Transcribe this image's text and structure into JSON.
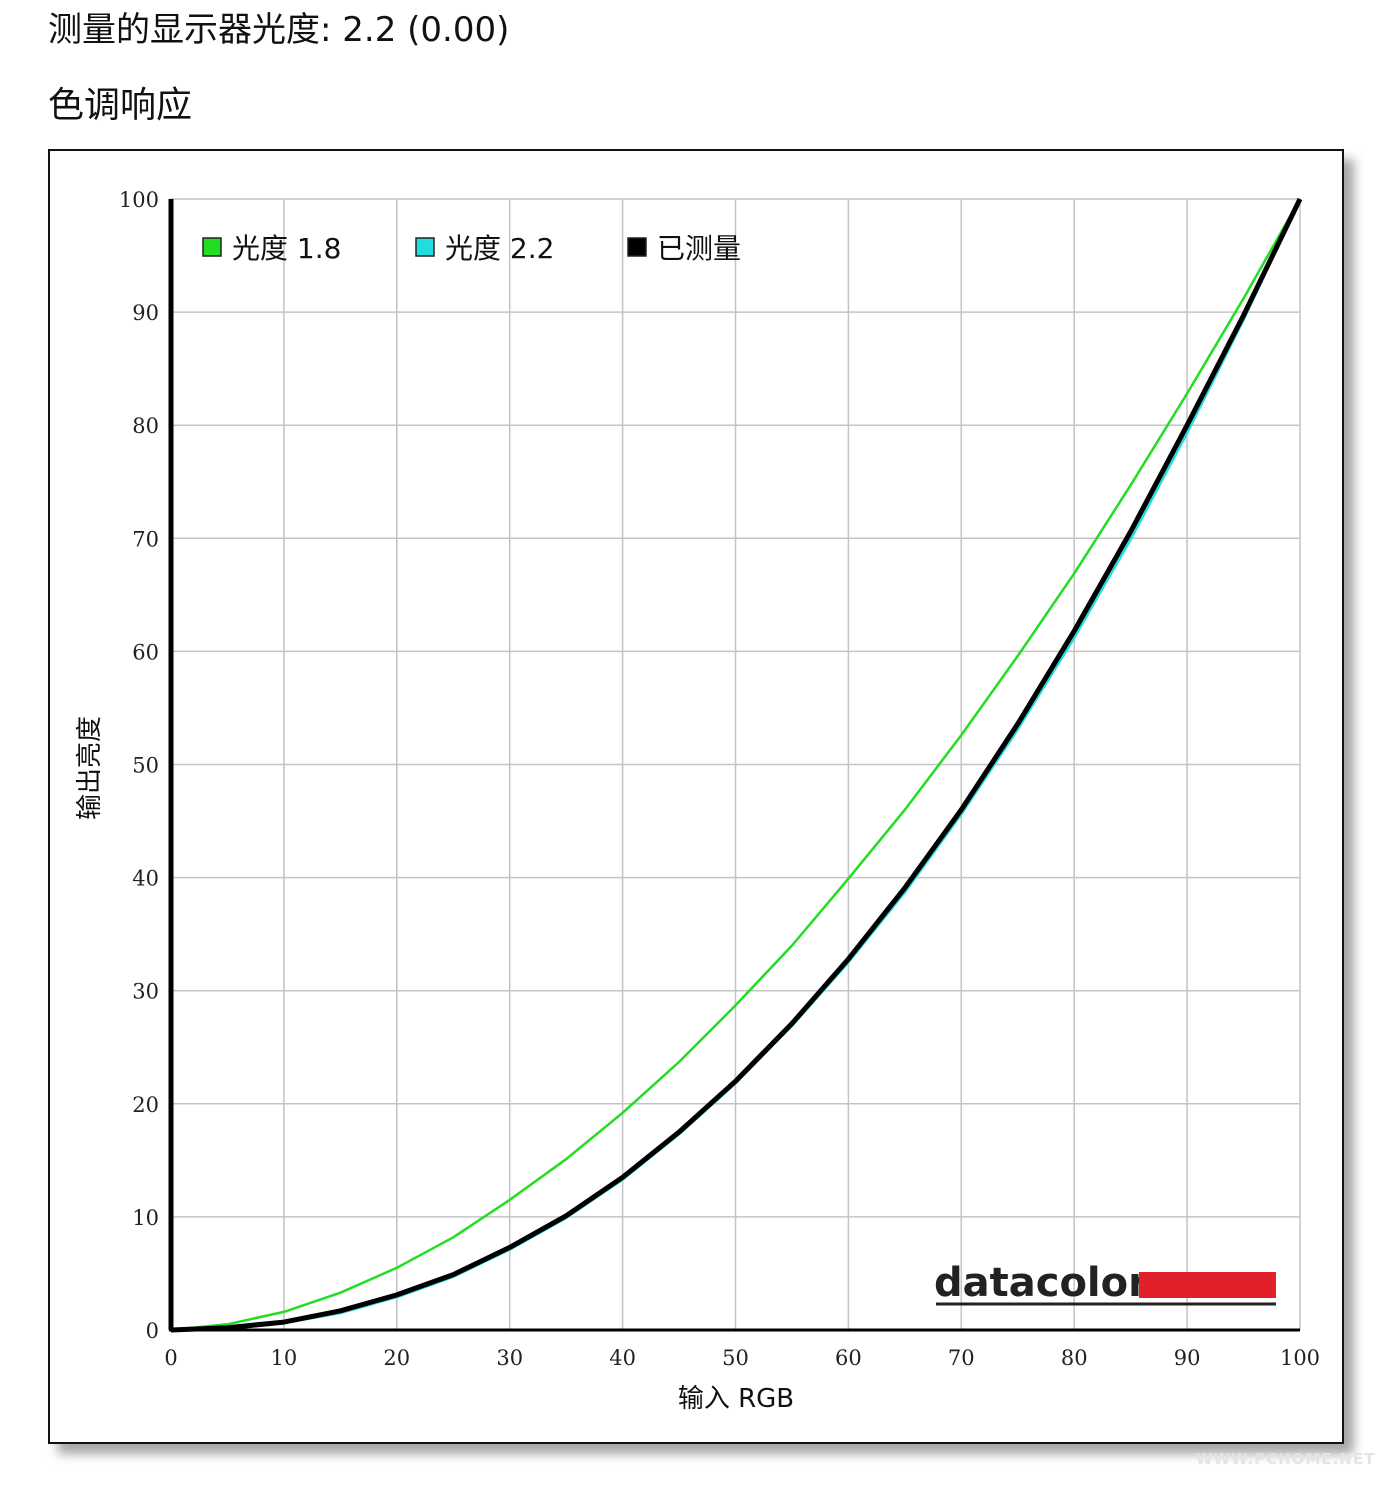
{
  "page": {
    "measured_gamma": "测量的显示器光度:  2.2 (0.00)",
    "section_title": "色调响应",
    "watermark": "WWW.PCHOME.NET"
  },
  "chart_data": {
    "type": "line",
    "title": "",
    "xlabel": "输入 RGB",
    "ylabel": "输出亮度",
    "xlim": [
      0,
      100
    ],
    "ylim": [
      0,
      100
    ],
    "xticks": [
      0,
      10,
      20,
      30,
      40,
      50,
      60,
      70,
      80,
      90,
      100
    ],
    "yticks": [
      0,
      10,
      20,
      30,
      40,
      50,
      60,
      70,
      80,
      90,
      100
    ],
    "grid": true,
    "legend_position": "top-left",
    "x": [
      0,
      5,
      10,
      15,
      20,
      25,
      30,
      35,
      40,
      45,
      50,
      55,
      60,
      65,
      70,
      75,
      80,
      85,
      90,
      95,
      100
    ],
    "series": [
      {
        "name": "光度 1.8",
        "color": "#22dd22",
        "values": [
          0,
          0.5,
          1.6,
          3.3,
          5.5,
          8.2,
          11.5,
          15.1,
          19.2,
          23.7,
          28.7,
          34.0,
          39.9,
          46.0,
          52.6,
          59.6,
          66.9,
          74.7,
          82.8,
          91.2,
          100
        ]
      },
      {
        "name": "光度 2.2",
        "color": "#22dddd",
        "values": [
          0,
          0.1,
          0.6,
          1.5,
          2.9,
          4.7,
          7.1,
          9.9,
          13.3,
          17.3,
          21.8,
          26.9,
          32.5,
          38.7,
          45.6,
          53.1,
          61.2,
          69.9,
          79.3,
          89.3,
          100
        ]
      },
      {
        "name": "已测量",
        "color": "#000000",
        "values": [
          0,
          0.2,
          0.7,
          1.7,
          3.1,
          4.9,
          7.3,
          10.1,
          13.5,
          17.5,
          22.0,
          27.1,
          32.8,
          39.1,
          46.0,
          53.6,
          61.8,
          70.6,
          80.0,
          89.7,
          100
        ]
      }
    ]
  },
  "brand": {
    "logo_text": "datacolor",
    "logo_color": "#e0202a"
  }
}
